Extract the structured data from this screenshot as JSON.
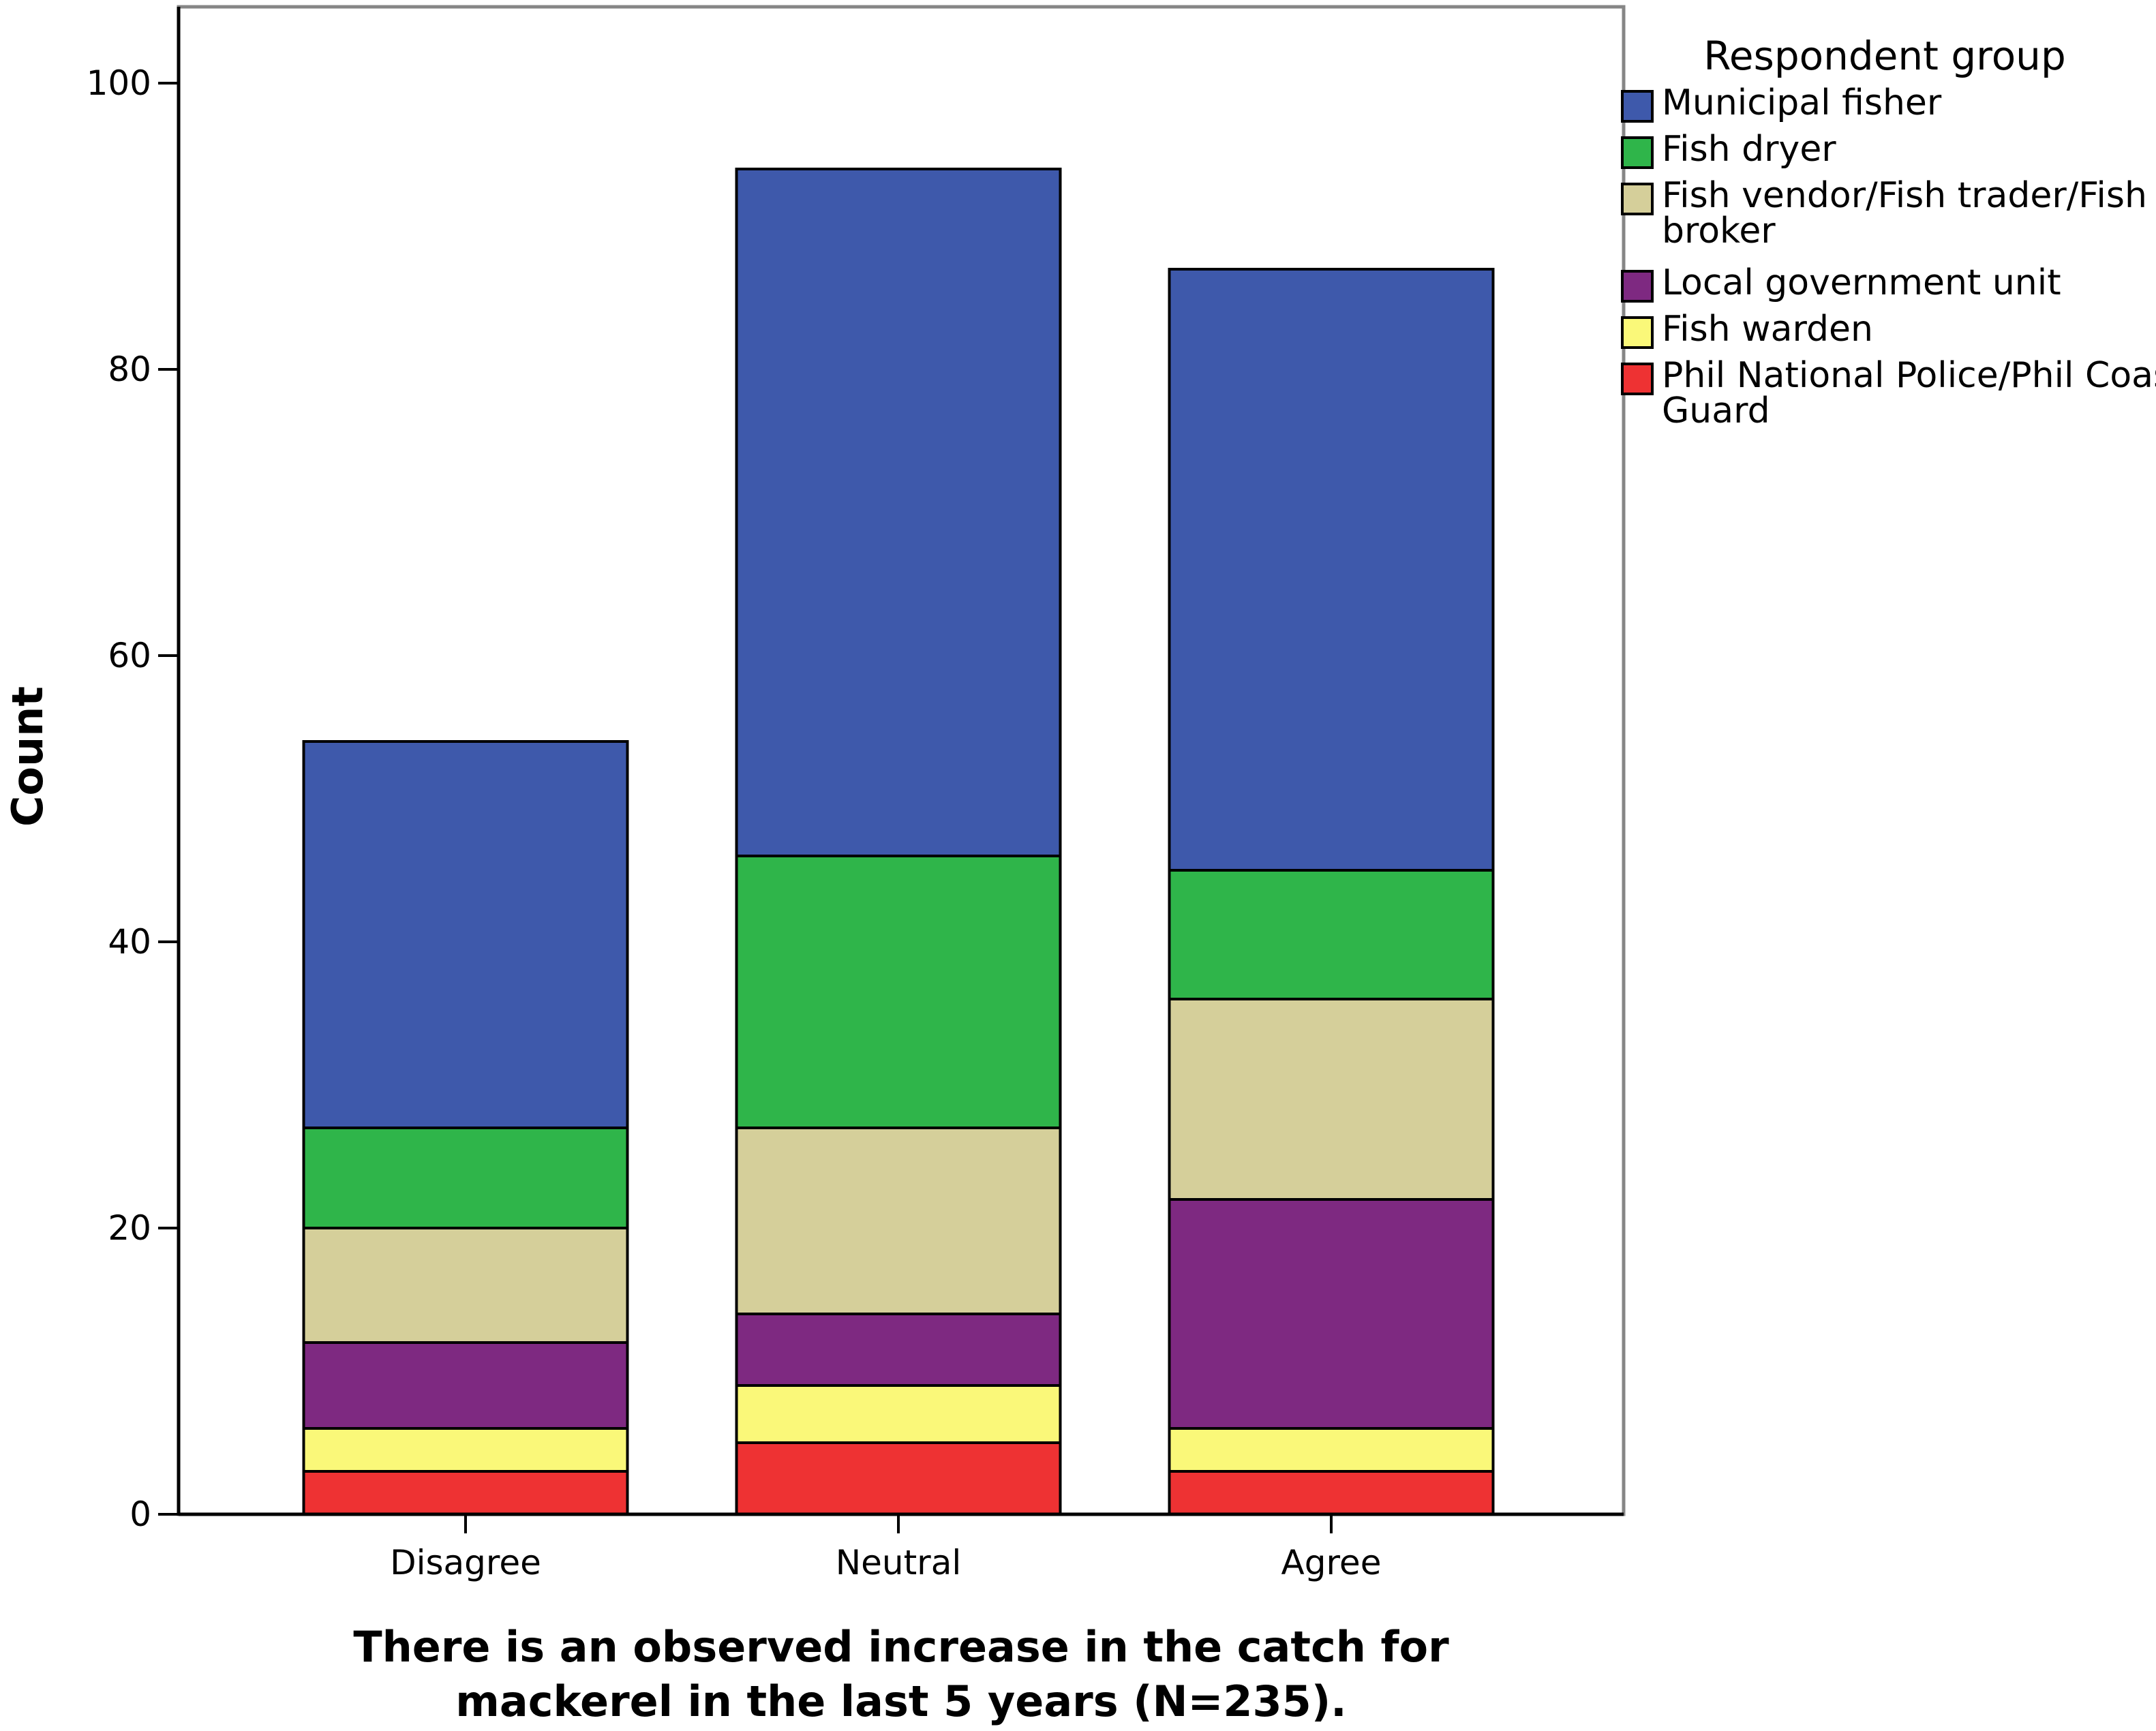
{
  "chart_data": {
    "type": "bar",
    "stacked": true,
    "categories": [
      "Disagree",
      "Neutral",
      "Agree"
    ],
    "ylabel": "Count",
    "xlabel_lines": [
      "There is an observed increase in the catch for",
      "mackerel in the last 5 years (N=235)."
    ],
    "ylim": [
      0,
      105
    ],
    "yticks": [
      0,
      20,
      40,
      60,
      80,
      100
    ],
    "grid": false,
    "legend": {
      "title": "Respondent group",
      "placement": "top-right, outside plot"
    },
    "series": [
      {
        "name": "Phil National Police/Phil Coast Guard",
        "legend_lines": [
          "Phil National Police/Phil Coast",
          "Guard"
        ],
        "color": "#ee3233",
        "values": [
          3,
          5,
          3
        ]
      },
      {
        "name": "Fish warden",
        "legend_lines": [
          "Fish warden"
        ],
        "color": "#faf879",
        "values": [
          3,
          4,
          3
        ]
      },
      {
        "name": "Local government unit",
        "legend_lines": [
          "Local government unit"
        ],
        "color": "#7e2981",
        "values": [
          6,
          5,
          16
        ]
      },
      {
        "name": "Fish vendor/Fish trader/Fish broker",
        "legend_lines": [
          "Fish vendor/Fish trader/Fish",
          "broker"
        ],
        "color": "#d5cf9a",
        "values": [
          8,
          13,
          14
        ]
      },
      {
        "name": "Fish dryer",
        "legend_lines": [
          "Fish dryer"
        ],
        "color": "#2fb54a",
        "values": [
          7,
          19,
          9
        ]
      },
      {
        "name": "Municipal fisher",
        "legend_lines": [
          "Municipal fisher"
        ],
        "color": "#3e59ab",
        "values": [
          27,
          48,
          42
        ]
      }
    ]
  }
}
